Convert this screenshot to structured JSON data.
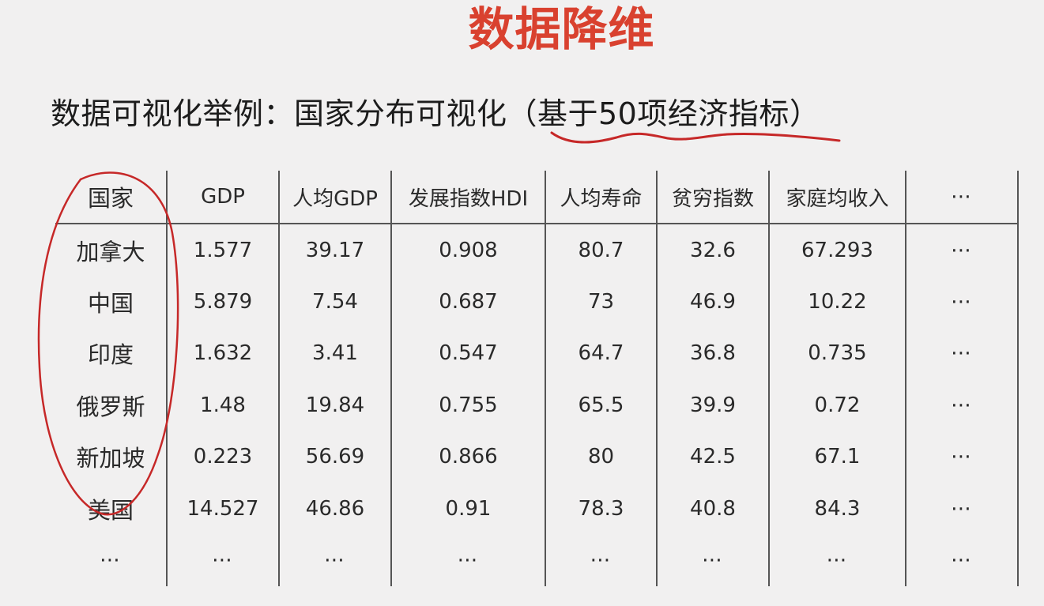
{
  "slide": {
    "title": "数据降维",
    "subtitle": "数据可视化举例：国家分布可视化（基于50项经济指标）"
  },
  "colors": {
    "title": "#d9412f",
    "annotation": "#c62828"
  },
  "table": {
    "headers": [
      "国家",
      "GDP",
      "人均GDP",
      "发展指数HDI",
      "人均寿命",
      "贫穷指数",
      "家庭均收入",
      "⋯"
    ],
    "rows": [
      [
        "加拿大",
        "1.577",
        "39.17",
        "0.908",
        "80.7",
        "32.6",
        "67.293",
        "⋯"
      ],
      [
        "中国",
        "5.879",
        "7.54",
        "0.687",
        "73",
        "46.9",
        "10.22",
        "⋯"
      ],
      [
        "印度",
        "1.632",
        "3.41",
        "0.547",
        "64.7",
        "36.8",
        "0.735",
        "⋯"
      ],
      [
        "俄罗斯",
        "1.48",
        "19.84",
        "0.755",
        "65.5",
        "39.9",
        "0.72",
        "⋯"
      ],
      [
        "新加坡",
        "0.223",
        "56.69",
        "0.866",
        "80",
        "42.5",
        "67.1",
        "⋯"
      ],
      [
        "美国",
        "14.527",
        "46.86",
        "0.91",
        "78.3",
        "40.8",
        "84.3",
        "⋯"
      ],
      [
        "⋯",
        "⋯",
        "⋯",
        "⋯",
        "⋯",
        "⋯",
        "⋯",
        "⋯"
      ]
    ]
  }
}
